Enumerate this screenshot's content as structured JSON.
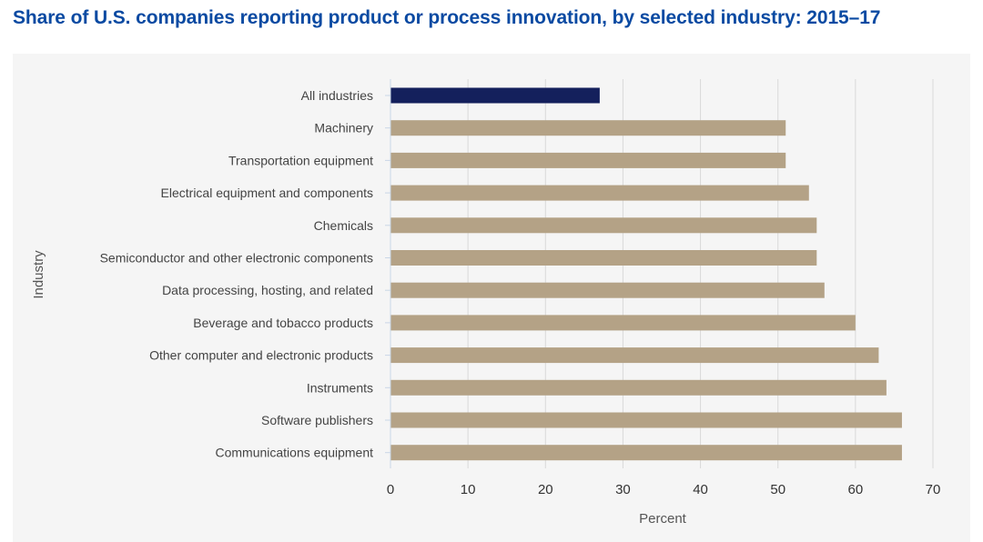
{
  "page_title": "Share of U.S. companies reporting product or process innovation, by selected industry: 2015–17",
  "chart_data": {
    "type": "bar",
    "orientation": "horizontal",
    "title": "Share of U.S. companies reporting product or process innovation, by selected industry: 2015–17",
    "xlabel": "Percent",
    "ylabel": "Industry",
    "xlim": [
      0,
      70
    ],
    "xticks": [
      "0",
      "10",
      "20",
      "30",
      "40",
      "50",
      "60",
      "70"
    ],
    "grid": true,
    "categories": [
      "All industries",
      "Machinery",
      "Transportation equipment",
      "Electrical equipment and components",
      "Chemicals",
      "Semiconductor and other electronic components",
      "Data processing, hosting, and related",
      "Beverage and tobacco products",
      "Other computer and electronic products",
      "Instruments",
      "Software publishers",
      "Communications equipment"
    ],
    "values": [
      27,
      51,
      51,
      54,
      55,
      55,
      56,
      60,
      63,
      64,
      66,
      66
    ],
    "highlight_category": "All industries",
    "colors": {
      "highlight": "#14205c",
      "bar": "#b4a286",
      "grid": "#d9d9d9",
      "axis": "#c9d6e6",
      "title": "#0a4aa2",
      "panel": "#f5f5f5"
    }
  }
}
